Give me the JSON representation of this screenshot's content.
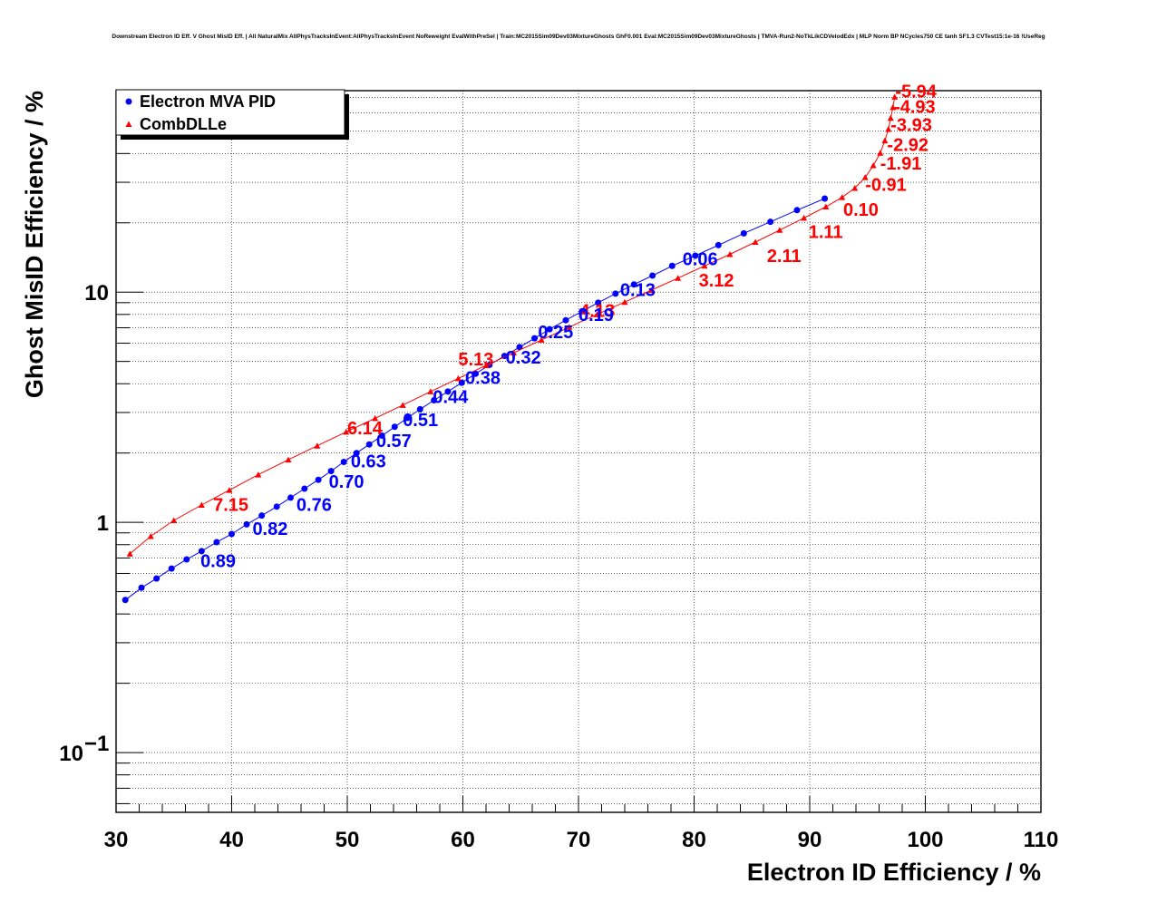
{
  "chart_data": {
    "type": "scatter",
    "title": "Downstream Electron ID Eff. V Ghost MisID Eff. | All NaturalMix AllPhysTracksInEvent:AllPhysTracksInEvent NoReweight EvalWithPreSel | Train:MC2015Sim09Dev03MixtureGhosts GhF0.001 Eval:MC2015Sim09Dev03MixtureGhosts | TMVA-Run2-NoTkLikCDVelodEdx | MLP Norm BP NCycles750 CE tanh SF1.3 CVTest15:1e-16 !UseReg",
    "xlabel": "Electron ID Efficiency / %",
    "ylabel": "Ghost MisID Efficiency / %",
    "xlim": [
      30,
      110
    ],
    "ylim": [
      0.055,
      75
    ],
    "yscale": "log",
    "grid": true,
    "legend_position": "top-left",
    "x_ticks": [
      "30",
      "40",
      "50",
      "60",
      "70",
      "80",
      "90",
      "100",
      "110"
    ],
    "y_ticks": [
      {
        "value": 0.1,
        "label": "10",
        "exp": "−1"
      },
      {
        "value": 1,
        "label": "1",
        "exp": ""
      },
      {
        "value": 10,
        "label": "10",
        "exp": ""
      }
    ],
    "series": [
      {
        "name": "Electron MVA PID",
        "color": "#0000ff",
        "marker": "circle",
        "points": [
          [
            30.8,
            0.46
          ],
          [
            32.2,
            0.52
          ],
          [
            33.5,
            0.57
          ],
          [
            34.8,
            0.63
          ],
          [
            36.1,
            0.69
          ],
          [
            37.4,
            0.75
          ],
          [
            38.7,
            0.82
          ],
          [
            40.0,
            0.89
          ],
          [
            41.3,
            0.98
          ],
          [
            42.6,
            1.07
          ],
          [
            43.9,
            1.17
          ],
          [
            45.1,
            1.28
          ],
          [
            46.3,
            1.4
          ],
          [
            47.5,
            1.53
          ],
          [
            48.6,
            1.67
          ],
          [
            49.7,
            1.83
          ],
          [
            50.8,
            2.0
          ],
          [
            51.9,
            2.18
          ],
          [
            53.0,
            2.38
          ],
          [
            54.1,
            2.6
          ],
          [
            55.2,
            2.84
          ],
          [
            56.3,
            3.1
          ],
          [
            57.5,
            3.39
          ],
          [
            58.7,
            3.7
          ],
          [
            59.9,
            4.04
          ],
          [
            61.1,
            4.42
          ],
          [
            62.3,
            4.83
          ],
          [
            63.6,
            5.28
          ],
          [
            64.9,
            5.77
          ],
          [
            66.2,
            6.3
          ],
          [
            67.5,
            6.9
          ],
          [
            68.9,
            7.55
          ],
          [
            70.3,
            8.25
          ],
          [
            71.7,
            9.0
          ],
          [
            73.2,
            9.85
          ],
          [
            74.8,
            10.8
          ],
          [
            76.4,
            11.8
          ],
          [
            78.1,
            13.0
          ],
          [
            80.1,
            14.4
          ],
          [
            82.1,
            16.0
          ],
          [
            84.3,
            18.0
          ],
          [
            86.6,
            20.2
          ],
          [
            88.9,
            22.7
          ],
          [
            91.3,
            25.5
          ]
        ]
      },
      {
        "name": "CombDLLe",
        "color": "#ff0000",
        "marker": "triangle",
        "points": [
          [
            31.2,
            0.73
          ],
          [
            33.0,
            0.87
          ],
          [
            35.0,
            1.02
          ],
          [
            37.4,
            1.19
          ],
          [
            39.8,
            1.38
          ],
          [
            42.3,
            1.61
          ],
          [
            44.9,
            1.87
          ],
          [
            47.4,
            2.15
          ],
          [
            49.9,
            2.47
          ],
          [
            52.4,
            2.83
          ],
          [
            54.8,
            3.23
          ],
          [
            57.2,
            3.7
          ],
          [
            59.6,
            4.22
          ],
          [
            62.0,
            4.8
          ],
          [
            64.4,
            5.45
          ],
          [
            66.8,
            6.2
          ],
          [
            69.2,
            7.05
          ],
          [
            71.6,
            8.0
          ],
          [
            74.0,
            9.05
          ],
          [
            76.3,
            10.2
          ],
          [
            78.6,
            11.5
          ],
          [
            80.9,
            13.0
          ],
          [
            83.1,
            14.6
          ],
          [
            85.3,
            16.5
          ],
          [
            87.4,
            18.6
          ],
          [
            89.5,
            21.0
          ],
          [
            91.4,
            23.5
          ],
          [
            92.8,
            25.8
          ],
          [
            93.9,
            28.3
          ],
          [
            94.8,
            31.5
          ],
          [
            95.5,
            35.5
          ],
          [
            96.1,
            40.2
          ],
          [
            96.5,
            45.5
          ],
          [
            96.8,
            51.0
          ],
          [
            97.0,
            57.0
          ],
          [
            97.2,
            63.5
          ],
          [
            97.35,
            70.5
          ]
        ]
      }
    ],
    "labels": [
      {
        "series": "CombDLLe",
        "text": "-5.94",
        "x": 97.4,
        "y": 70
      },
      {
        "series": "CombDLLe",
        "text": "-4.93",
        "x": 97.3,
        "y": 60
      },
      {
        "series": "CombDLLe",
        "text": "-3.93",
        "x": 97.0,
        "y": 50
      },
      {
        "series": "CombDLLe",
        "text": "-2.92",
        "x": 96.7,
        "y": 41
      },
      {
        "series": "CombDLLe",
        "text": "-1.91",
        "x": 96.1,
        "y": 34
      },
      {
        "series": "CombDLLe",
        "text": "-0.91",
        "x": 94.8,
        "y": 27.5
      },
      {
        "series": "CombDLLe",
        "text": "0.10",
        "x": 92.9,
        "y": 21.5
      },
      {
        "series": "CombDLLe",
        "text": "1.11",
        "x": 89.9,
        "y": 17.2
      },
      {
        "series": "CombDLLe",
        "text": "2.11",
        "x": 86.3,
        "y": 13.5
      },
      {
        "series": "CombDLLe",
        "text": "3.12",
        "x": 80.4,
        "y": 10.6
      },
      {
        "series": "CombDLLe",
        "text": "4.13",
        "x": 70.1,
        "y": 7.8
      },
      {
        "series": "CombDLLe",
        "text": "5.13",
        "x": 59.6,
        "y": 4.8
      },
      {
        "series": "CombDLLe",
        "text": "6.14",
        "x": 50.0,
        "y": 2.41
      },
      {
        "series": "CombDLLe",
        "text": "7.15",
        "x": 38.4,
        "y": 1.12
      },
      {
        "series": "Electron MVA PID",
        "text": "0.06",
        "x": 79.0,
        "y": 13.1
      },
      {
        "series": "Electron MVA PID",
        "text": "0.13",
        "x": 73.6,
        "y": 9.6
      },
      {
        "series": "Electron MVA PID",
        "text": "0.19",
        "x": 70.0,
        "y": 7.5
      },
      {
        "series": "Electron MVA PID",
        "text": "0.25",
        "x": 66.5,
        "y": 6.3
      },
      {
        "series": "Electron MVA PID",
        "text": "0.32",
        "x": 63.7,
        "y": 4.9
      },
      {
        "series": "Electron MVA PID",
        "text": "0.38",
        "x": 60.2,
        "y": 4.0
      },
      {
        "series": "Electron MVA PID",
        "text": "0.44",
        "x": 57.4,
        "y": 3.3
      },
      {
        "series": "Electron MVA PID",
        "text": "0.51",
        "x": 54.8,
        "y": 2.62
      },
      {
        "series": "Electron MVA PID",
        "text": "0.57",
        "x": 52.5,
        "y": 2.13
      },
      {
        "series": "Electron MVA PID",
        "text": "0.63",
        "x": 50.3,
        "y": 1.73
      },
      {
        "series": "Electron MVA PID",
        "text": "0.70",
        "x": 48.4,
        "y": 1.41
      },
      {
        "series": "Electron MVA PID",
        "text": "0.76",
        "x": 45.6,
        "y": 1.12
      },
      {
        "series": "Electron MVA PID",
        "text": "0.82",
        "x": 41.8,
        "y": 0.88
      },
      {
        "series": "Electron MVA PID",
        "text": "0.89",
        "x": 37.3,
        "y": 0.64
      }
    ]
  }
}
